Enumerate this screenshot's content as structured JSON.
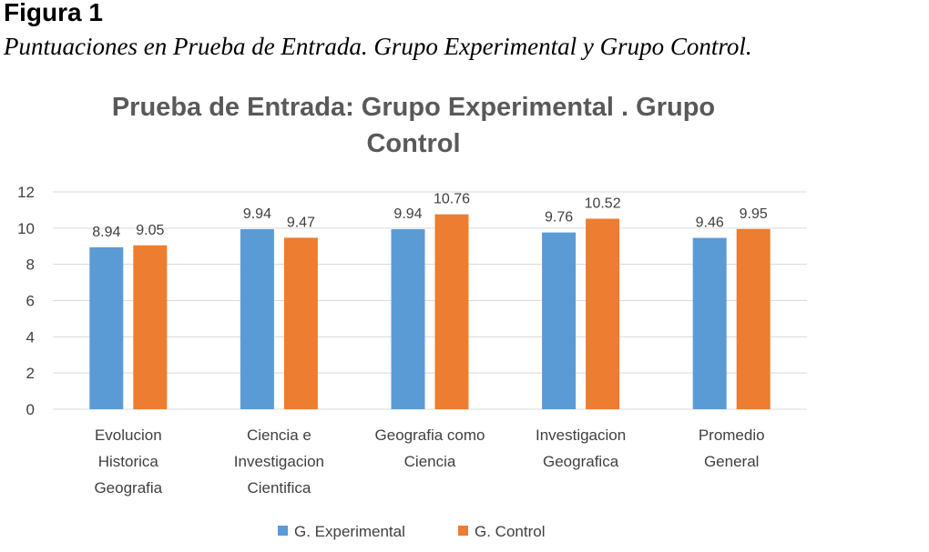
{
  "figure": {
    "label": "Figura 1",
    "caption": "Puntuaciones en Prueba de Entrada. Grupo Experimental y Grupo Control."
  },
  "chart_data": {
    "type": "bar",
    "title_lines": [
      "Prueba de Entrada: Grupo Experimental . Grupo",
      "Control"
    ],
    "categories": [
      [
        "Evolucion",
        "Historica",
        "Geografia"
      ],
      [
        "Ciencia e",
        "Investigacion",
        "Cientifica"
      ],
      [
        "Geografia como",
        "Ciencia"
      ],
      [
        "Investigacion",
        "Geografica"
      ],
      [
        "Promedio",
        "General"
      ]
    ],
    "series": [
      {
        "name": "G. Experimental",
        "color": "#5B9BD5",
        "values": [
          8.94,
          9.94,
          9.94,
          9.76,
          9.46
        ]
      },
      {
        "name": "G. Control",
        "color": "#ED7D31",
        "values": [
          9.05,
          9.47,
          10.76,
          10.52,
          9.95
        ]
      }
    ],
    "ylim": [
      0,
      12
    ],
    "yticks": [
      0,
      2,
      4,
      6,
      8,
      10,
      12
    ],
    "grid": true,
    "legend_position": "bottom"
  }
}
